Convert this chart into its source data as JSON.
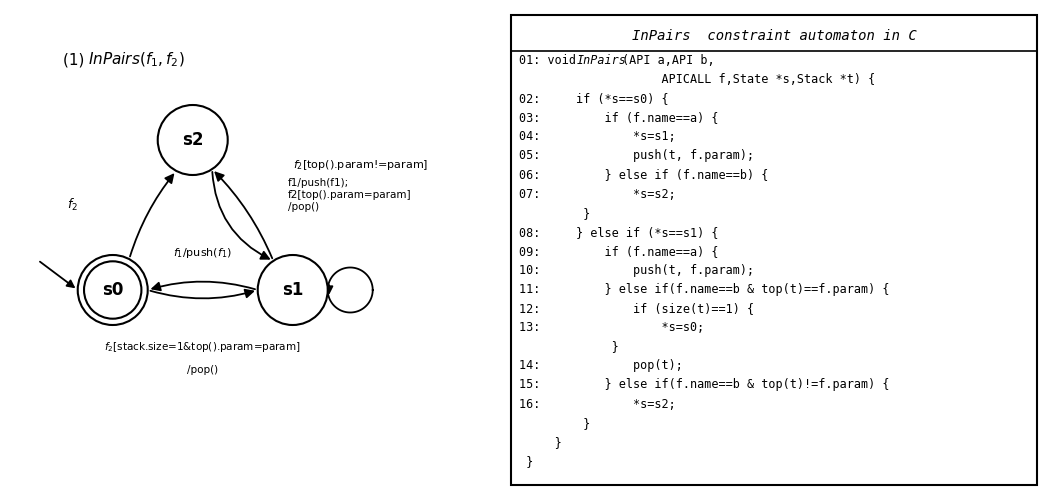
{
  "title_label": "(1) InPairs(f₁,f₂)",
  "states": {
    "s0": [
      0.22,
      0.42
    ],
    "s1": [
      0.58,
      0.42
    ],
    "s2": [
      0.38,
      0.72
    ]
  },
  "code_title": "InPairs constraint automaton in C",
  "code_lines": [
    "01: void InPairs(API a,API b,",
    "                    APICALL f,State *s,Stack *t) {",
    "02:     if (*s==s0) {",
    "03:         if (f.name==a) {",
    "04:             *s=s1;",
    "05:             push(t, f.param);",
    "06:         } else if (f.name==b) {",
    "07:             *s=s2;",
    "         }",
    "08:     } else if (*s==s1) {",
    "09:         if (f.name==a) {",
    "10:             push(t, f.param);",
    "11:         } else if(f.name==b & top(t)==f.param) {",
    "12:             if (size(t)==1) {",
    "13:                 *s=s0;",
    "             }",
    "14:             pop(t);",
    "15:         } else if(f.name==b & top(t)!=f.param) {",
    "16:             *s=s2;",
    "         }",
    "     }",
    " }"
  ],
  "bg_color": "#ffffff",
  "border_color": "#000000",
  "text_color": "#000000"
}
